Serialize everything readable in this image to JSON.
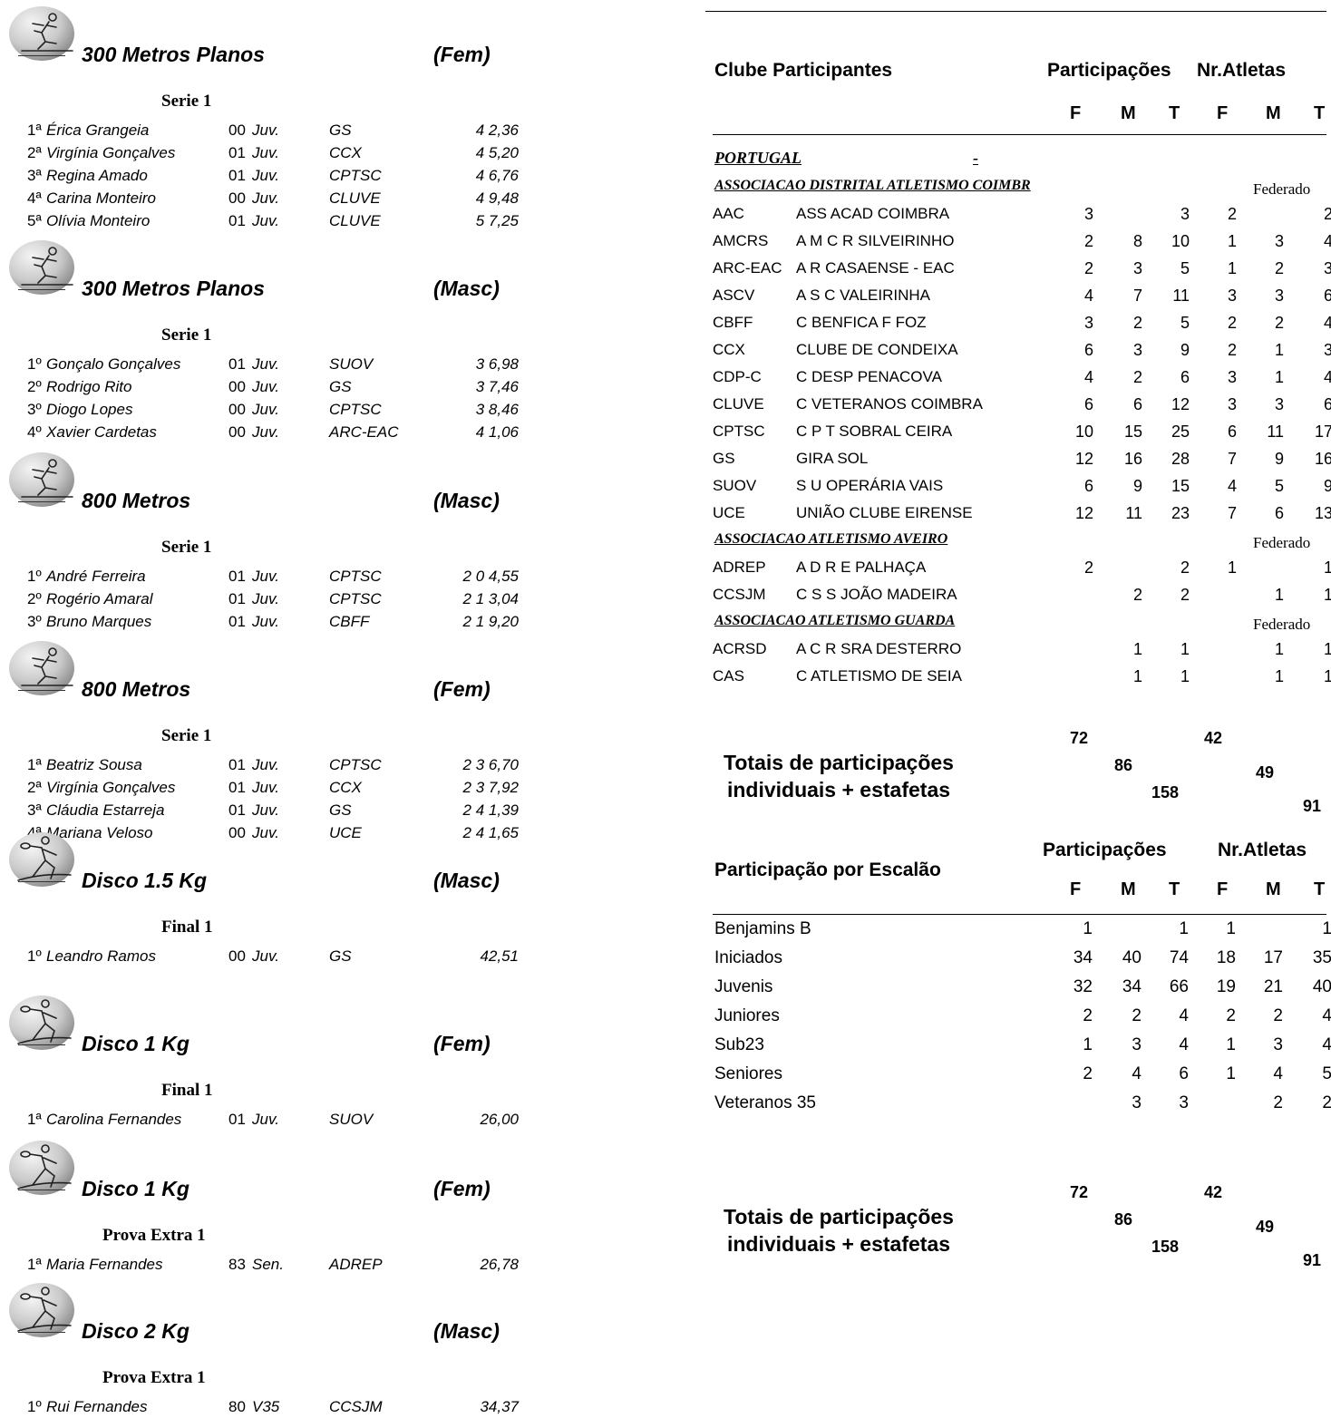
{
  "events": [
    {
      "title": "300 Metros Planos",
      "sex": "(Fem)",
      "icon": "runner-icon",
      "round": "Serie  1",
      "rows": [
        {
          "place": "1ª",
          "name": "Érica Grangeia",
          "year": "00",
          "cat": "Juv.",
          "club": "GS",
          "mark": "4 2,36"
        },
        {
          "place": "2ª",
          "name": "Virgínia Gonçalves",
          "year": "01",
          "cat": "Juv.",
          "club": "CCX",
          "mark": "4 5,20"
        },
        {
          "place": "3ª",
          "name": "Regina Amado",
          "year": "01",
          "cat": "Juv.",
          "club": "CPTSC",
          "mark": "4 6,76"
        },
        {
          "place": "4ª",
          "name": "Carina Monteiro",
          "year": "00",
          "cat": "Juv.",
          "club": "CLUVE",
          "mark": "4 9,48"
        },
        {
          "place": "5ª",
          "name": "Olívia Monteiro",
          "year": "01",
          "cat": "Juv.",
          "club": "CLUVE",
          "mark": "5 7,25"
        }
      ]
    },
    {
      "title": "300 Metros Planos",
      "sex": "(Masc)",
      "icon": "runner-icon",
      "round": "Serie  1",
      "rows": [
        {
          "place": "1º",
          "name": "Gonçalo Gonçalves",
          "year": "01",
          "cat": "Juv.",
          "club": "SUOV",
          "mark": "3 6,98"
        },
        {
          "place": "2º",
          "name": "Rodrigo Rito",
          "year": "00",
          "cat": "Juv.",
          "club": "GS",
          "mark": "3 7,46"
        },
        {
          "place": "3º",
          "name": "Diogo Lopes",
          "year": "00",
          "cat": "Juv.",
          "club": "CPTSC",
          "mark": "3 8,46"
        },
        {
          "place": "4º",
          "name": "Xavier Cardetas",
          "year": "00",
          "cat": "Juv.",
          "club": "ARC-EAC",
          "mark": "4 1,06"
        }
      ]
    },
    {
      "title": "800 Metros",
      "sex": "(Masc)",
      "icon": "runner-icon",
      "round": "Serie  1",
      "rows": [
        {
          "place": "1º",
          "name": "André Ferreira",
          "year": "01",
          "cat": "Juv.",
          "club": "CPTSC",
          "mark": "2  0 4,55"
        },
        {
          "place": "2º",
          "name": "Rogério Amaral",
          "year": "01",
          "cat": "Juv.",
          "club": "CPTSC",
          "mark": "2  1 3,04"
        },
        {
          "place": "3º",
          "name": "Bruno Marques",
          "year": "01",
          "cat": "Juv.",
          "club": "CBFF",
          "mark": "2  1 9,20"
        }
      ]
    },
    {
      "title": "800 Metros",
      "sex": "(Fem)",
      "icon": "runner-icon",
      "round": "Serie  1",
      "rows": [
        {
          "place": "1ª",
          "name": "Beatriz Sousa",
          "year": "01",
          "cat": "Juv.",
          "club": "CPTSC",
          "mark": "2  3 6,70"
        },
        {
          "place": "2ª",
          "name": "Virgínia Gonçalves",
          "year": "01",
          "cat": "Juv.",
          "club": "CCX",
          "mark": "2  3 7,92"
        },
        {
          "place": "3ª",
          "name": "Cláudia Estarreja",
          "year": "01",
          "cat": "Juv.",
          "club": "GS",
          "mark": "2  4 1,39"
        },
        {
          "place": "4ª",
          "name": "Mariana Veloso",
          "year": "00",
          "cat": "Juv.",
          "club": "UCE",
          "mark": "2  4 1,65"
        }
      ]
    },
    {
      "title": "Disco 1.5 Kg",
      "sex": "(Masc)",
      "icon": "discus-thrower-icon",
      "round": "Final  1",
      "rows": [
        {
          "place": "1º",
          "name": "Leandro Ramos",
          "year": "00",
          "cat": "Juv.",
          "club": "GS",
          "mark": "42,51"
        }
      ]
    },
    {
      "title": "Disco 1 Kg",
      "sex": "(Fem)",
      "icon": "discus-thrower-icon",
      "round": "Final  1",
      "rows": [
        {
          "place": "1ª",
          "name": "Carolina Fernandes",
          "year": "01",
          "cat": "Juv.",
          "club": "SUOV",
          "mark": "26,00"
        }
      ]
    },
    {
      "title": "Disco 1 Kg",
      "sex": "(Fem)",
      "icon": "discus-thrower-icon",
      "round": "Prova Extra  1",
      "rows": [
        {
          "place": "1ª",
          "name": "Maria Fernandes",
          "year": "83",
          "cat": "Sen.",
          "club": "ADREP",
          "mark": "26,78"
        }
      ]
    },
    {
      "title": "Disco 2 Kg",
      "sex": "(Masc)",
      "icon": "discus-thrower-icon",
      "round": "Prova Extra  1",
      "rows": [
        {
          "place": "1º",
          "name": "Rui Fernandes",
          "year": "80",
          "cat": "V35",
          "club": "CCSJM",
          "mark": "34,37"
        }
      ]
    }
  ],
  "clubs": {
    "header": "Clube Participantes",
    "part_label": "Participações",
    "atl_label": "Nr.Atletas",
    "cols": [
      "F",
      "M",
      "T",
      "F",
      "M",
      "T"
    ],
    "country": "PORTUGAL",
    "country_dash": "-",
    "federado": "Federado",
    "associations": [
      {
        "name": "ASSOCIACAO DISTRITAL ATLETISMO COIMBR",
        "clubs": [
          {
            "code": "AAC",
            "name": "ASS ACAD COIMBRA",
            "v": [
              "3",
              "",
              "3",
              "2",
              "",
              "2"
            ]
          },
          {
            "code": "AMCRS",
            "name": "A M C R SILVEIRINHO",
            "v": [
              "2",
              "8",
              "10",
              "1",
              "3",
              "4"
            ]
          },
          {
            "code": "ARC-EAC",
            "name": "A R CASAENSE - EAC",
            "v": [
              "2",
              "3",
              "5",
              "1",
              "2",
              "3"
            ]
          },
          {
            "code": "ASCV",
            "name": "A S C VALEIRINHA",
            "v": [
              "4",
              "7",
              "11",
              "3",
              "3",
              "6"
            ]
          },
          {
            "code": "CBFF",
            "name": "C BENFICA F FOZ",
            "v": [
              "3",
              "2",
              "5",
              "2",
              "2",
              "4"
            ]
          },
          {
            "code": "CCX",
            "name": "CLUBE DE CONDEIXA",
            "v": [
              "6",
              "3",
              "9",
              "2",
              "1",
              "3"
            ]
          },
          {
            "code": "CDP-C",
            "name": "C DESP PENACOVA",
            "v": [
              "4",
              "2",
              "6",
              "3",
              "1",
              "4"
            ]
          },
          {
            "code": "CLUVE",
            "name": "C VETERANOS COIMBRA",
            "v": [
              "6",
              "6",
              "12",
              "3",
              "3",
              "6"
            ]
          },
          {
            "code": "CPTSC",
            "name": "C P T SOBRAL CEIRA",
            "v": [
              "10",
              "15",
              "25",
              "6",
              "11",
              "17"
            ]
          },
          {
            "code": "GS",
            "name": "GIRA SOL",
            "v": [
              "12",
              "16",
              "28",
              "7",
              "9",
              "16"
            ]
          },
          {
            "code": "SUOV",
            "name": "S U OPERÁRIA VAIS",
            "v": [
              "6",
              "9",
              "15",
              "4",
              "5",
              "9"
            ]
          },
          {
            "code": "UCE",
            "name": "UNIÃO CLUBE EIRENSE",
            "v": [
              "12",
              "11",
              "23",
              "7",
              "6",
              "13"
            ]
          }
        ]
      },
      {
        "name": "ASSOCIACAO ATLETISMO AVEIRO",
        "clubs": [
          {
            "code": "ADREP",
            "name": "A D R E PALHAÇA",
            "v": [
              "2",
              "",
              "2",
              "1",
              "",
              "1"
            ]
          },
          {
            "code": "CCSJM",
            "name": "C S S JOÃO MADEIRA",
            "v": [
              "",
              "2",
              "2",
              "",
              "1",
              "1"
            ]
          }
        ]
      },
      {
        "name": "ASSOCIACAO ATLETISMO GUARDA",
        "clubs": [
          {
            "code": "ACRSD",
            "name": "A C R SRA DESTERRO",
            "v": [
              "",
              "1",
              "1",
              "",
              "1",
              "1"
            ]
          },
          {
            "code": "CAS",
            "name": "C ATLETISMO DE SEIA",
            "v": [
              "",
              "1",
              "1",
              "",
              "1",
              "1"
            ]
          }
        ]
      }
    ],
    "totals": {
      "label1": "Totais de participações",
      "label2": "individuais + estafetas",
      "pf": "72",
      "pm": "86",
      "pt": "158",
      "af": "42",
      "am": "49",
      "at": "91"
    }
  },
  "escalao": {
    "header": "Participação por Escalão",
    "part_label": "Participações",
    "atl_label": "Nr.Atletas",
    "cols": [
      "F",
      "M",
      "T",
      "F",
      "M",
      "T"
    ],
    "rows": [
      {
        "name": "Benjamins B",
        "v": [
          "1",
          "",
          "1",
          "1",
          "",
          "1"
        ]
      },
      {
        "name": "Iniciados",
        "v": [
          "34",
          "40",
          "74",
          "18",
          "17",
          "35"
        ]
      },
      {
        "name": "Juvenis",
        "v": [
          "32",
          "34",
          "66",
          "19",
          "21",
          "40"
        ]
      },
      {
        "name": "Juniores",
        "v": [
          "2",
          "2",
          "4",
          "2",
          "2",
          "4"
        ]
      },
      {
        "name": "Sub23",
        "v": [
          "1",
          "3",
          "4",
          "1",
          "3",
          "4"
        ]
      },
      {
        "name": "Seniores",
        "v": [
          "2",
          "4",
          "6",
          "1",
          "4",
          "5"
        ]
      },
      {
        "name": "Veteranos 35",
        "v": [
          "",
          "3",
          "3",
          "",
          "2",
          "2"
        ]
      }
    ],
    "totals": {
      "label1": "Totais de participações",
      "label2": "individuais + estafetas",
      "pf": "72",
      "pm": "86",
      "pt": "158",
      "af": "42",
      "am": "49",
      "at": "91"
    }
  }
}
